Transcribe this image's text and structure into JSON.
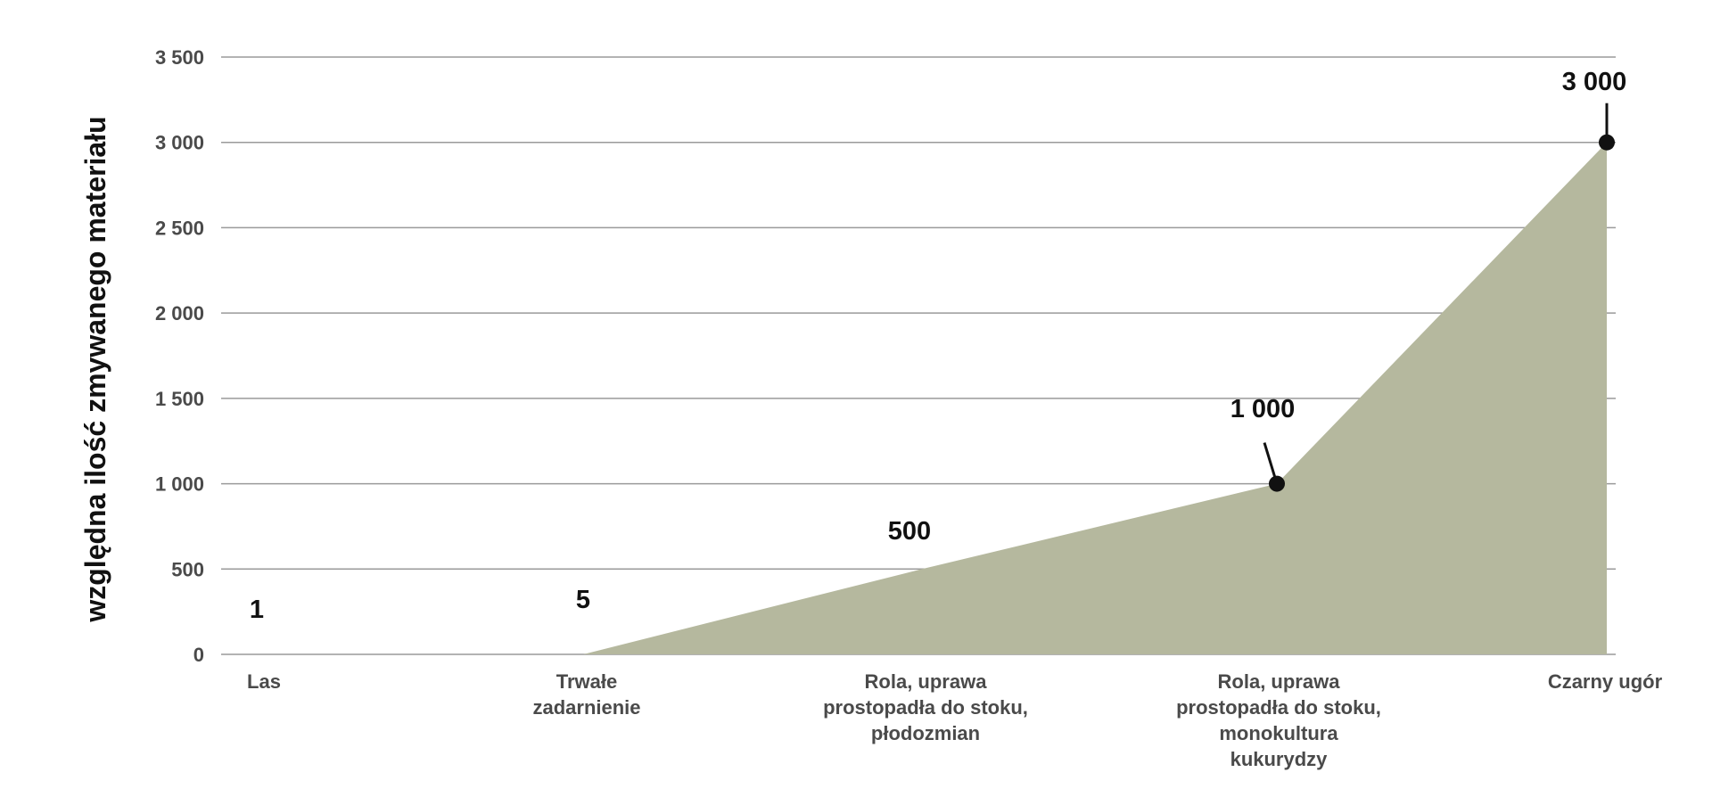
{
  "chart_data": {
    "type": "area",
    "title": "",
    "xlabel": "",
    "ylabel": "względna ilość zmywanego materiału",
    "categories": [
      [
        "Las"
      ],
      [
        "Trwałe",
        "zadarnienie"
      ],
      [
        "Rola, uprawa",
        "prostopadła do stoku,",
        "płodozmian"
      ],
      [
        "Rola, uprawa",
        "prostopadła do stoku,",
        "monokultura",
        "kukurydzy"
      ],
      [
        "Czarny ugór"
      ]
    ],
    "values": [
      1,
      5,
      500,
      1000,
      3000
    ],
    "data_labels": [
      "1",
      "5",
      "500",
      "1 000",
      "3 000"
    ],
    "highlighted_points": [
      3,
      4
    ],
    "ylim": [
      0,
      3500
    ],
    "yticks": [
      0,
      500,
      1000,
      1500,
      2000,
      2500,
      3000,
      3500
    ],
    "ytick_labels": [
      "0",
      "500",
      "1 000",
      "1 500",
      "2 000",
      "2 500",
      "3 000",
      "3 500"
    ],
    "grid": true,
    "colors": {
      "fill": "#b5b89e",
      "grid": "#9a9a9a",
      "marker": "#111111"
    }
  }
}
